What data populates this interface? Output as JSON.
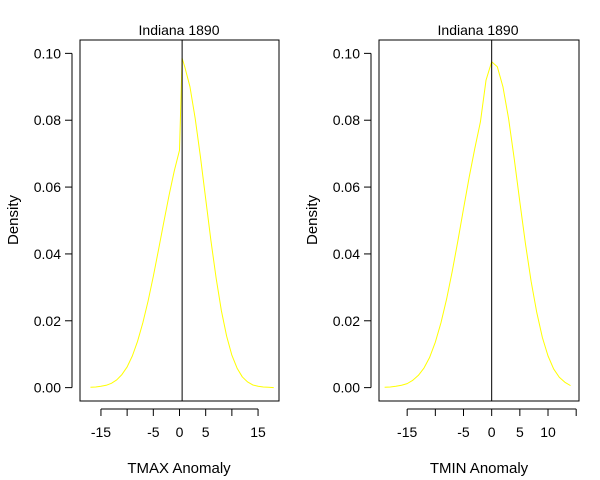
{
  "chart_data": [
    {
      "type": "line",
      "title": "Indiana 1890",
      "xlabel": "TMAX Anomaly",
      "ylabel": "Density",
      "xlim": [
        -19.0,
        19.0
      ],
      "ylim": [
        -0.004,
        0.104
      ],
      "x_ticks": [
        -15,
        -10,
        -5,
        0,
        5,
        10,
        15
      ],
      "x_tick_labels": [
        "-15",
        "",
        "-5",
        "0",
        "5",
        "",
        "15"
      ],
      "y_ticks": [
        0.0,
        0.02,
        0.04,
        0.06,
        0.08,
        0.1
      ],
      "y_tick_labels": [
        "0.00",
        "0.02",
        "0.04",
        "0.06",
        "0.08",
        "0.10"
      ],
      "vline_x": 0.5,
      "series": [
        {
          "color": "#ffff00",
          "x": [
            -17,
            -16,
            -15,
            -14,
            -13,
            -12,
            -11,
            -10,
            -9,
            -8,
            -7,
            -6,
            -5,
            -4,
            -3,
            -2,
            -1,
            0,
            0.5,
            1,
            2,
            3,
            4,
            5,
            6,
            7,
            8,
            9,
            10,
            11,
            12,
            13,
            14,
            15,
            16,
            17,
            18
          ],
          "y": [
            0.0001,
            0.0002,
            0.0004,
            0.0007,
            0.0013,
            0.0023,
            0.0039,
            0.0062,
            0.0095,
            0.0139,
            0.0194,
            0.0259,
            0.0333,
            0.0413,
            0.0495,
            0.0575,
            0.0648,
            0.071,
            0.0985,
            0.096,
            0.09,
            0.0805,
            0.069,
            0.0565,
            0.044,
            0.0327,
            0.023,
            0.0154,
            0.0097,
            0.0058,
            0.0032,
            0.0017,
            0.0008,
            0.0004,
            0.0002,
            0.0001,
            0.0
          ]
        }
      ]
    },
    {
      "type": "line",
      "title": "Indiana 1890",
      "xlabel": "TMIN Anomaly",
      "ylabel": "Density",
      "xlim": [
        -20.0,
        15.5
      ],
      "ylim": [
        -0.004,
        0.104
      ],
      "x_ticks": [
        -15,
        -10,
        -5,
        0,
        5,
        10,
        15
      ],
      "x_tick_labels": [
        "-15",
        "",
        "-5",
        "0",
        "5",
        "10",
        ""
      ],
      "y_ticks": [
        0.0,
        0.02,
        0.04,
        0.06,
        0.08,
        0.1
      ],
      "y_tick_labels": [
        "0.00",
        "0.02",
        "0.04",
        "0.06",
        "0.08",
        "0.10"
      ],
      "vline_x": 0.0,
      "series": [
        {
          "color": "#ffff00",
          "x": [
            -19,
            -18,
            -17,
            -16,
            -15,
            -14,
            -13,
            -12,
            -11,
            -10,
            -9,
            -8,
            -7,
            -6,
            -5,
            -4,
            -3,
            -2,
            -1,
            0,
            1,
            2,
            3,
            4,
            5,
            6,
            7,
            8,
            9,
            10,
            11,
            12,
            13,
            14
          ],
          "y": [
            0.0001,
            0.0002,
            0.0004,
            0.0007,
            0.0012,
            0.0022,
            0.0037,
            0.0059,
            0.0091,
            0.0136,
            0.0194,
            0.0265,
            0.0348,
            0.0439,
            0.0535,
            0.0629,
            0.0715,
            0.0795,
            0.092,
            0.0975,
            0.096,
            0.09,
            0.0805,
            0.0685,
            0.0555,
            0.043,
            0.0318,
            0.0225,
            0.015,
            0.0095,
            0.0056,
            0.0031,
            0.0016,
            0.0006
          ]
        }
      ]
    }
  ]
}
